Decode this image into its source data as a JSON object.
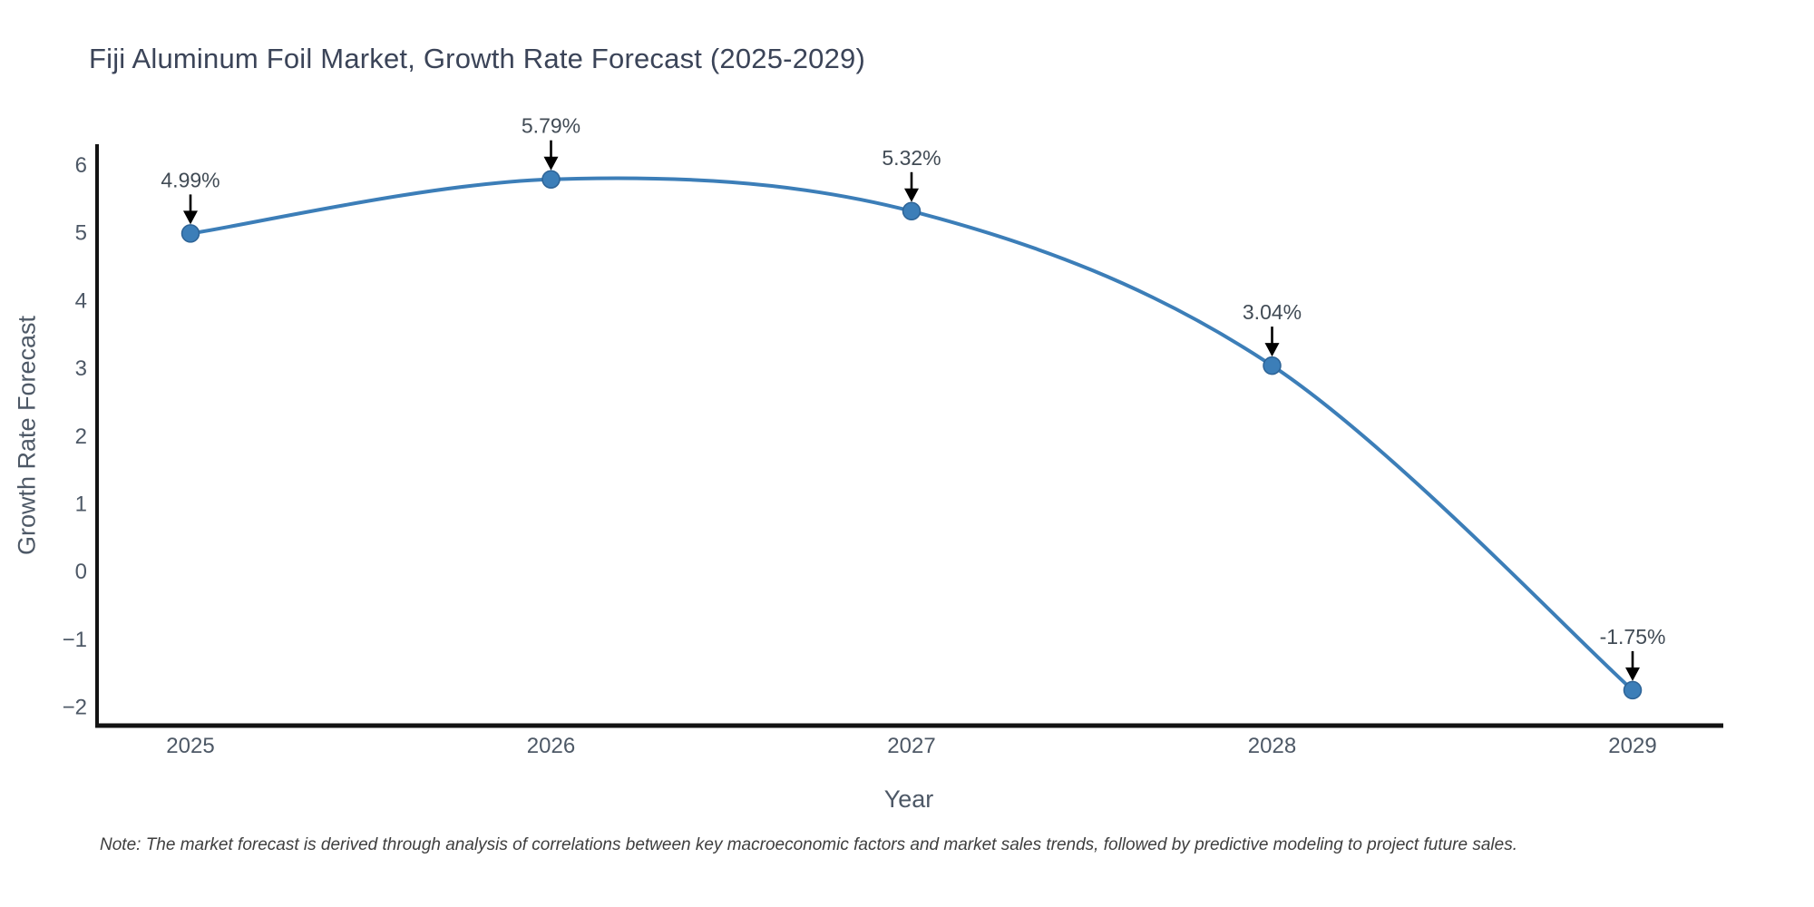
{
  "chart": {
    "title": "Fiji Aluminum Foil Market, Growth Rate Forecast (2025-2029)",
    "xlabel": "Year",
    "ylabel": "Growth Rate Forecast",
    "note": "Note: The market forecast is derived through analysis of correlations between key macroeconomic factors and market sales trends, followed by predictive modeling to project future sales."
  },
  "chart_data": {
    "type": "line",
    "title": "Fiji Aluminum Foil Market, Growth Rate Forecast (2025-2029)",
    "xlabel": "Year",
    "ylabel": "Growth Rate Forecast",
    "x": [
      2025,
      2026,
      2027,
      2028,
      2029
    ],
    "values": [
      4.99,
      5.79,
      5.32,
      3.04,
      -1.75
    ],
    "point_labels": [
      "4.99%",
      "5.79%",
      "5.32%",
      "3.04%",
      "-1.75%"
    ],
    "xtick_labels": [
      "2025",
      "2026",
      "2027",
      "2028",
      "2029"
    ],
    "yticks": [
      6,
      5,
      4,
      3,
      2,
      1,
      0,
      -1,
      -2
    ],
    "ytick_labels": [
      "6",
      "5",
      "4",
      "3",
      "2",
      "1",
      "0",
      "−1",
      "−2"
    ],
    "xlim": [
      2024.74,
      2029.26
    ],
    "ylim": [
      -2.27,
      6.32
    ],
    "line_shape": "spline",
    "grid": false,
    "legend": false,
    "annotations_have_arrows": true,
    "colors": {
      "line": "#3c7eb8",
      "marker_fill": "#3c7eb8",
      "marker_stroke": "#2d6396",
      "axis_spine": "#131313",
      "tick_text": "#4d5866",
      "annotation_text": "#414b55",
      "arrow": "#000000",
      "title_text": "#3b4458",
      "background": "#ffffff"
    }
  }
}
